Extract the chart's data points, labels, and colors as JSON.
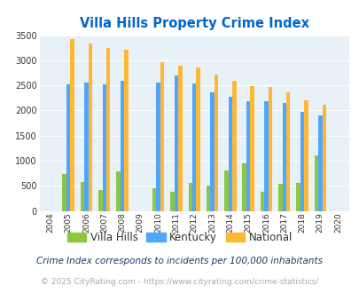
{
  "title": "Villa Hills Property Crime Index",
  "years": [
    2004,
    2005,
    2006,
    2007,
    2008,
    2009,
    2010,
    2011,
    2012,
    2013,
    2014,
    2015,
    2016,
    2017,
    2018,
    2019,
    2020
  ],
  "villa_hills": [
    0,
    730,
    580,
    420,
    780,
    0,
    450,
    380,
    565,
    510,
    800,
    950,
    390,
    535,
    555,
    1100,
    0
  ],
  "kentucky": [
    0,
    2520,
    2550,
    2520,
    2590,
    0,
    2550,
    2700,
    2545,
    2365,
    2270,
    2185,
    2190,
    2145,
    1965,
    1900,
    0
  ],
  "national": [
    0,
    3420,
    3330,
    3250,
    3210,
    0,
    2960,
    2900,
    2855,
    2720,
    2590,
    2490,
    2470,
    2370,
    2210,
    2115,
    0
  ],
  "villa_hills_color": "#8dc63f",
  "kentucky_color": "#4da6ff",
  "national_color": "#ffb833",
  "bg_color": "#ddeeff",
  "plot_bg_color": "#e8f0f8",
  "title_color": "#0066cc",
  "ylim": [
    0,
    3500
  ],
  "yticks": [
    0,
    500,
    1000,
    1500,
    2000,
    2500,
    3000,
    3500
  ],
  "footnote1": "Crime Index corresponds to incidents per 100,000 inhabitants",
  "footnote2": "© 2025 CityRating.com - https://www.cityrating.com/crime-statistics/",
  "legend_labels": [
    "Villa Hills",
    "Kentucky",
    "National"
  ]
}
